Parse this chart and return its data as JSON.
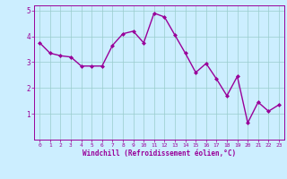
{
  "x": [
    0,
    1,
    2,
    3,
    4,
    5,
    6,
    7,
    8,
    9,
    10,
    11,
    12,
    13,
    14,
    15,
    16,
    17,
    18,
    19,
    20,
    21,
    22,
    23
  ],
  "y": [
    3.75,
    3.35,
    3.25,
    3.2,
    2.85,
    2.85,
    2.85,
    3.65,
    4.1,
    4.2,
    3.75,
    4.9,
    4.75,
    4.05,
    3.35,
    2.6,
    2.95,
    2.35,
    1.7,
    2.45,
    0.65,
    1.45,
    1.1,
    1.35
  ],
  "line_color": "#990099",
  "marker": "D",
  "marker_size": 2.0,
  "line_width": 1.0,
  "bg_color": "#cceeff",
  "grid_color": "#99cccc",
  "xlabel": "Windchill (Refroidissement éolien,°C)",
  "xlabel_color": "#990099",
  "tick_color": "#990099",
  "spine_color": "#990099",
  "ylim": [
    0,
    5.2
  ],
  "xlim": [
    -0.5,
    23.5
  ],
  "yticks": [
    1,
    2,
    3,
    4,
    5
  ],
  "xticks": [
    0,
    1,
    2,
    3,
    4,
    5,
    6,
    7,
    8,
    9,
    10,
    11,
    12,
    13,
    14,
    15,
    16,
    17,
    18,
    19,
    20,
    21,
    22,
    23
  ],
  "xtick_fontsize": 4.5,
  "ytick_fontsize": 5.5,
  "xlabel_fontsize": 5.5
}
